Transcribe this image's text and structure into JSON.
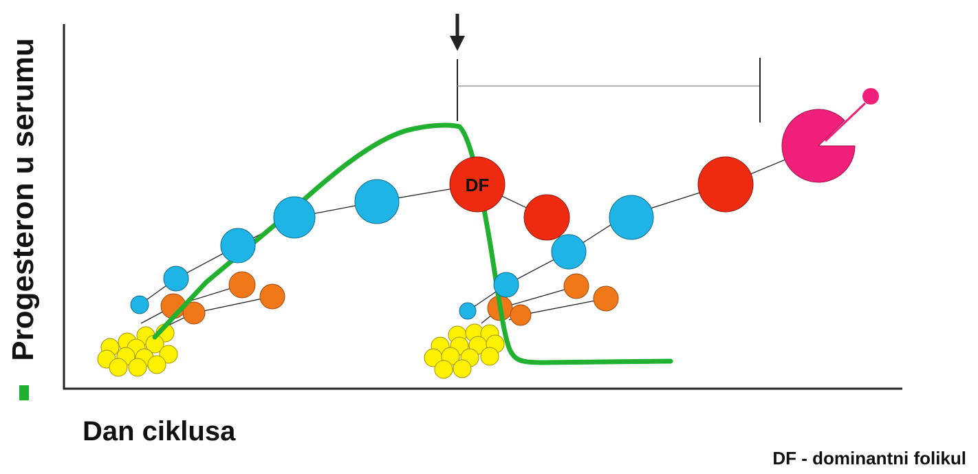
{
  "axes": {
    "y_label": "Progesteron u serumu",
    "x_label": "Dan ciklusa"
  },
  "marker": "DF",
  "legend": "DF - dominantni folikul"
}
